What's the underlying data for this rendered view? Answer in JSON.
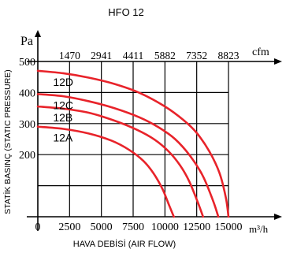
{
  "chart_data": {
    "type": "line",
    "title": "HFO 12",
    "ylabel_unit": "Pa",
    "top_axis_unit": "cfm",
    "x_axis_unit": "m³/h",
    "xlabel": "HAVA DEBİSİ (AIR FLOW)",
    "ylabel": "STATİK BASINÇ (STATIC PRESSURE)",
    "xlim": [
      0,
      15000
    ],
    "ylim": [
      0,
      500
    ],
    "x_ticks": [
      0,
      2500,
      5000,
      7500,
      10000,
      12500,
      15000
    ],
    "x_tick_labels": [
      "0",
      "2500",
      "5000",
      "7500",
      "10000",
      "12500",
      "15000"
    ],
    "y_ticks": [
      200,
      300,
      400,
      500
    ],
    "y_tick_labels": [
      "200",
      "300",
      "400",
      "500"
    ],
    "top_ticks_m3h": [
      2500,
      5000,
      7500,
      10000,
      12500,
      15000
    ],
    "top_tick_labels": [
      "1470",
      "2941",
      "4411",
      "5882",
      "7352",
      "8823"
    ],
    "grid": true,
    "series": [
      {
        "name": "12D",
        "color": "#e8232a",
        "x": [
          0,
          2000,
          4000,
          6000,
          8000,
          10000,
          11500,
          12500,
          13500,
          14300,
          14800,
          15000
        ],
        "y": [
          470,
          462,
          448,
          428,
          399,
          355,
          310,
          270,
          210,
          140,
          60,
          0
        ]
      },
      {
        "name": "12C",
        "color": "#e8232a",
        "x": [
          0,
          2000,
          4000,
          6000,
          8000,
          9500,
          10800,
          12000,
          13000,
          13800,
          14200
        ],
        "y": [
          395,
          388,
          372,
          350,
          320,
          288,
          250,
          195,
          130,
          50,
          0
        ]
      },
      {
        "name": "12B",
        "color": "#e8232a",
        "x": [
          0,
          2000,
          4000,
          6000,
          7800,
          9200,
          10300,
          11200,
          11900,
          12600,
          13000
        ],
        "y": [
          355,
          348,
          335,
          310,
          280,
          248,
          210,
          165,
          115,
          45,
          0
        ]
      },
      {
        "name": "12A",
        "color": "#e8232a",
        "x": [
          0,
          2000,
          4000,
          5800,
          7200,
          8300,
          9100,
          9800,
          10300,
          10700
        ],
        "y": [
          290,
          283,
          268,
          245,
          215,
          180,
          140,
          90,
          40,
          0
        ]
      }
    ]
  }
}
